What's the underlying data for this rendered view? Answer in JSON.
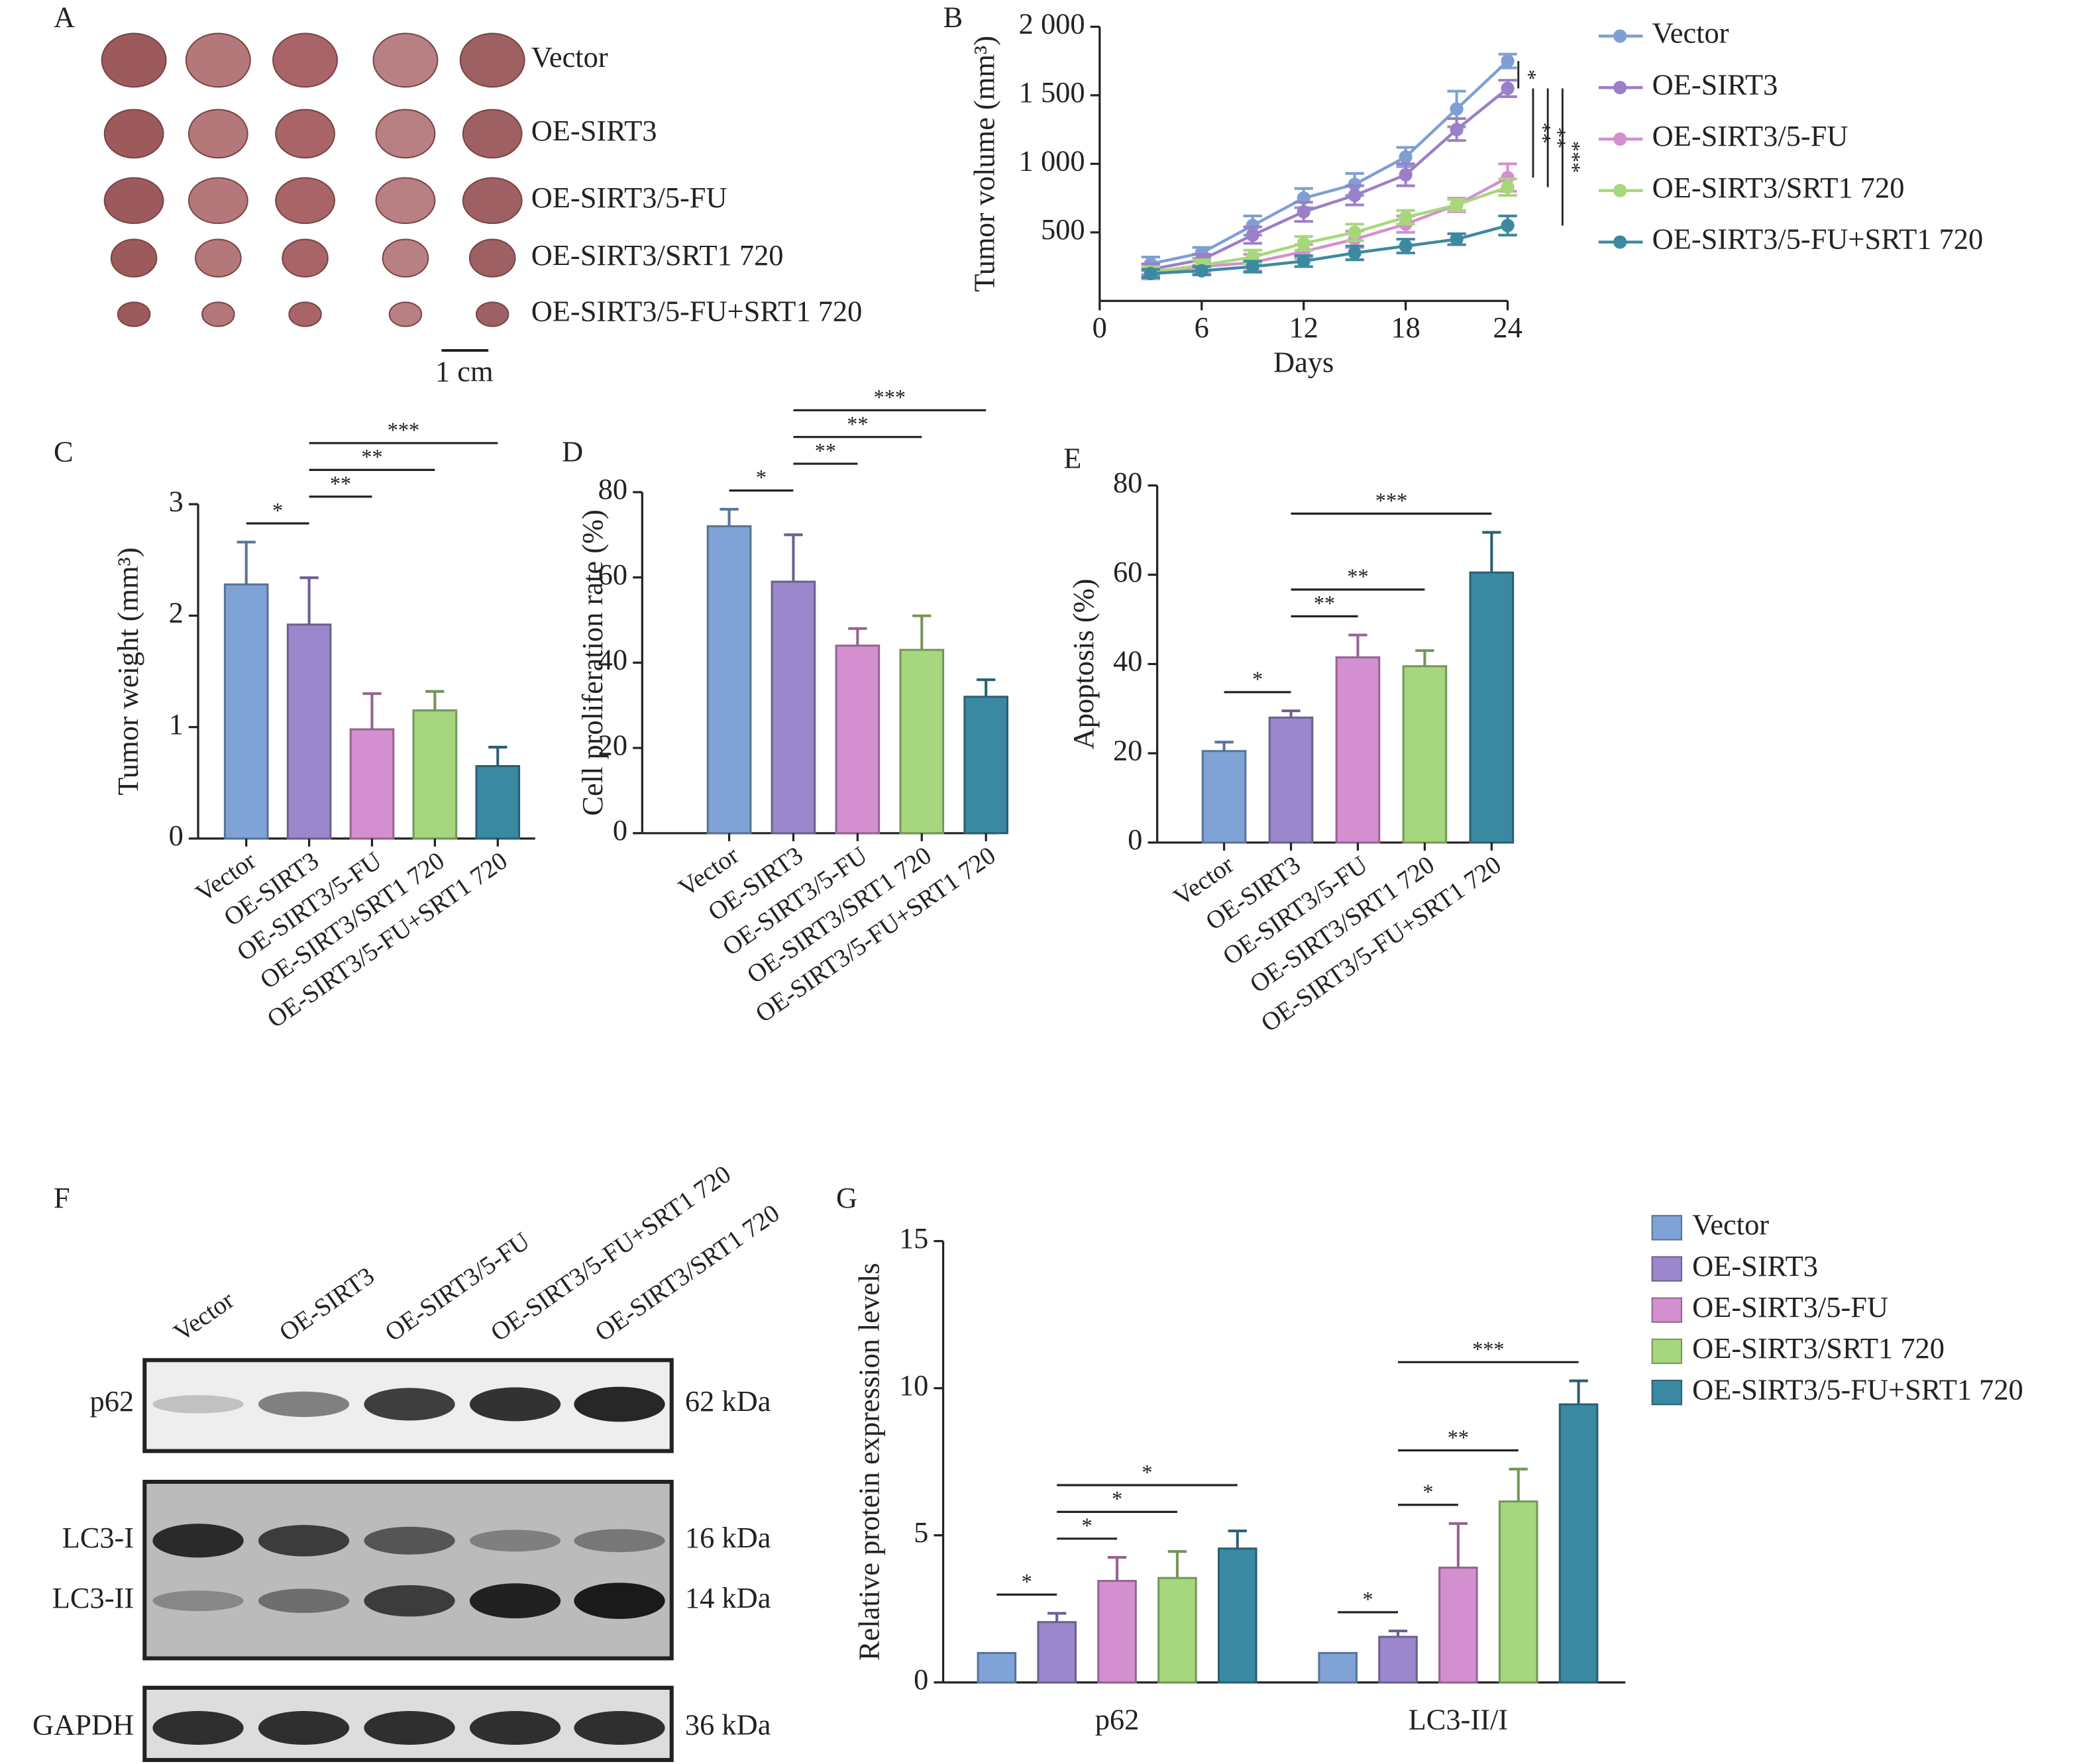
{
  "photo": {
    "label": "A",
    "rows": [
      "Vector",
      "OE-SIRT3",
      "OE-SIRT3/5-FU",
      "OE-SIRT3/SRT1 720",
      "OE-SIRT3/5-FU+SRT1 720"
    ],
    "scale_bar": "1 cm"
  },
  "blot": {
    "label": "F",
    "lanes": [
      "Vector",
      "OE-SIRT3",
      "OE-SIRT3/5-FU",
      "OE-SIRT3/5-FU+SRT1 720",
      "OE-SIRT3/SRT1 720"
    ],
    "bands": [
      {
        "name": "p62",
        "size": "62 kDa"
      },
      {
        "name": "LC3-I",
        "size": "16 kDa"
      },
      {
        "name": "LC3-II",
        "size": "14 kDa"
      },
      {
        "name": "GAPDH",
        "size": "36 kDa"
      }
    ]
  },
  "chart_data": [
    {
      "type": "line",
      "label": "B",
      "y_label": "Tumor volume (mm³)",
      "x_label": "Days",
      "x": [
        3,
        6,
        9,
        12,
        15,
        18,
        21,
        24
      ],
      "xlim": [
        0,
        24
      ],
      "xticks": [
        0,
        6,
        12,
        18,
        24
      ],
      "ylim": [
        0,
        2000
      ],
      "yticks": [
        500,
        {
          "value": 1000,
          "label": "1 000"
        },
        {
          "value": 1500,
          "label": "1 500"
        },
        {
          "value": 2000,
          "label": "2 000"
        }
      ],
      "legend": "right",
      "series": [
        {
          "name": "Vector",
          "color": "#7f9fd3",
          "values": [
            270,
            350,
            550,
            750,
            850,
            1050,
            1400,
            1750
          ],
          "errors": [
            50,
            40,
            70,
            70,
            80,
            70,
            130,
            50
          ]
        },
        {
          "name": "OE-SIRT3",
          "color": "#9b7fc9",
          "values": [
            230,
            300,
            480,
            650,
            770,
            920,
            1250,
            1550
          ],
          "errors": [
            40,
            40,
            60,
            70,
            70,
            80,
            80,
            60
          ]
        },
        {
          "name": "OE-SIRT3/5-FU",
          "color": "#d48fd0",
          "values": [
            200,
            250,
            280,
            360,
            450,
            560,
            700,
            900
          ],
          "errors": [
            40,
            40,
            60,
            50,
            60,
            60,
            50,
            100
          ]
        },
        {
          "name": "OE-SIRT3/SRT1 720",
          "color": "#a8d77a",
          "values": [
            210,
            260,
            320,
            420,
            500,
            610,
            700,
            830
          ],
          "errors": [
            40,
            40,
            50,
            50,
            60,
            50,
            40,
            60
          ]
        },
        {
          "name": "OE-SIRT3/5-FU+SRT1 720",
          "color": "#3d8aa0",
          "values": [
            200,
            220,
            250,
            290,
            350,
            400,
            450,
            550
          ],
          "errors": [
            30,
            30,
            40,
            40,
            50,
            50,
            40,
            70
          ]
        }
      ],
      "comparisons": [
        {
          "groups": [
            "Vector",
            "OE-SIRT3"
          ],
          "label": "*"
        },
        {
          "groups": [
            "OE-SIRT3",
            "OE-SIRT3/5-FU"
          ],
          "label": "**"
        },
        {
          "groups": [
            "OE-SIRT3",
            "OE-SIRT3/SRT1 720"
          ],
          "label": "**"
        },
        {
          "groups": [
            "OE-SIRT3",
            "OE-SIRT3/5-FU+SRT1 720"
          ],
          "label": "***"
        }
      ]
    },
    {
      "type": "bar",
      "label": "C",
      "y_label": "Tumor weight (mm³)",
      "categories": [
        "Vector",
        "OE-SIRT3",
        "OE-SIRT3/5-FU",
        "OE-SIRT3/SRT1 720",
        "OE-SIRT3/5-FU+SRT1 720"
      ],
      "values": [
        2.28,
        1.92,
        0.98,
        1.15,
        0.65
      ],
      "errors": [
        0.38,
        0.42,
        0.32,
        0.17,
        0.17
      ],
      "colors": [
        "#7fa3d6",
        "#9b87cc",
        "#d38fcf",
        "#a6d67e",
        "#3b88a3"
      ],
      "ylim": [
        0,
        3
      ],
      "yticks": [
        0,
        1,
        2,
        3
      ],
      "comparisons": [
        {
          "groups": [
            "Vector",
            "OE-SIRT3"
          ],
          "label": "*"
        },
        {
          "groups": [
            "OE-SIRT3",
            "OE-SIRT3/5-FU"
          ],
          "label": "**"
        },
        {
          "groups": [
            "OE-SIRT3",
            "OE-SIRT3/SRT1 720"
          ],
          "label": "**"
        },
        {
          "groups": [
            "OE-SIRT3",
            "OE-SIRT3/5-FU+SRT1 720"
          ],
          "label": "***"
        }
      ]
    },
    {
      "type": "bar",
      "label": "D",
      "y_label": "Cell proliferation rate (%)",
      "categories": [
        "Vector",
        "OE-SIRT3",
        "OE-SIRT3/5-FU",
        "OE-SIRT3/SRT1 720",
        "OE-SIRT3/5-FU+SRT1 720"
      ],
      "values": [
        72,
        59,
        44,
        43,
        32
      ],
      "errors": [
        4,
        11,
        4,
        8,
        4
      ],
      "colors": [
        "#7fa3d6",
        "#9b87cc",
        "#d38fcf",
        "#a6d67e",
        "#3b88a3"
      ],
      "ylim": [
        0,
        80
      ],
      "yticks": [
        0,
        20,
        40,
        60,
        80
      ],
      "comparisons": [
        {
          "groups": [
            "Vector",
            "OE-SIRT3"
          ],
          "label": "*"
        },
        {
          "groups": [
            "OE-SIRT3",
            "OE-SIRT3/5-FU"
          ],
          "label": "**"
        },
        {
          "groups": [
            "OE-SIRT3",
            "OE-SIRT3/SRT1 720"
          ],
          "label": "**"
        },
        {
          "groups": [
            "OE-SIRT3",
            "OE-SIRT3/5-FU+SRT1 720"
          ],
          "label": "***"
        }
      ]
    },
    {
      "type": "bar",
      "label": "E",
      "y_label": "Apoptosis (%)",
      "categories": [
        "Vector",
        "OE-SIRT3",
        "OE-SIRT3/5-FU",
        "OE-SIRT3/SRT1 720",
        "OE-SIRT3/5-FU+SRT1 720"
      ],
      "values": [
        20.5,
        28,
        41.5,
        39.5,
        60.5
      ],
      "errors": [
        2,
        1.5,
        5,
        3.5,
        9
      ],
      "colors": [
        "#7fa3d6",
        "#9b87cc",
        "#d38fcf",
        "#a6d67e",
        "#3b88a3"
      ],
      "ylim": [
        0,
        80
      ],
      "yticks": [
        0,
        20,
        40,
        60,
        80
      ],
      "comparisons": [
        {
          "groups": [
            "Vector",
            "OE-SIRT3"
          ],
          "label": "*"
        },
        {
          "groups": [
            "OE-SIRT3",
            "OE-SIRT3/5-FU"
          ],
          "label": "**"
        },
        {
          "groups": [
            "OE-SIRT3",
            "OE-SIRT3/SRT1 720"
          ],
          "label": "**"
        },
        {
          "groups": [
            "OE-SIRT3",
            "OE-SIRT3/5-FU+SRT1 720"
          ],
          "label": "***"
        }
      ]
    },
    {
      "type": "grouped_bar",
      "label": "G",
      "y_label": "Relative protein expression levels",
      "categories": [
        "p62",
        "LC3-II/I"
      ],
      "ylim": [
        0,
        15
      ],
      "yticks": [
        0,
        5,
        10,
        15
      ],
      "legend": "right",
      "series": [
        {
          "name": "Vector",
          "color": "#7fa3d6",
          "values": [
            1,
            1
          ],
          "errors": [
            0,
            0
          ]
        },
        {
          "name": "OE-SIRT3",
          "color": "#9b87cc",
          "values": [
            2.05,
            1.55
          ],
          "errors": [
            0.3,
            0.2
          ]
        },
        {
          "name": "OE-SIRT3/5-FU",
          "color": "#d38fcf",
          "values": [
            3.45,
            3.9
          ],
          "errors": [
            0.8,
            1.5
          ]
        },
        {
          "name": "OE-SIRT3/SRT1 720",
          "color": "#a6d67e",
          "values": [
            3.55,
            6.15
          ],
          "errors": [
            0.9,
            1.1
          ]
        },
        {
          "name": "OE-SIRT3/5-FU+SRT1 720",
          "color": "#3b88a3",
          "values": [
            4.55,
            9.45
          ],
          "errors": [
            0.6,
            0.8
          ]
        }
      ],
      "comparisons": [
        {
          "category": "p62",
          "groups": [
            "Vector",
            "OE-SIRT3"
          ],
          "label": "*"
        },
        {
          "category": "p62",
          "groups": [
            "OE-SIRT3",
            "OE-SIRT3/5-FU"
          ],
          "label": "*"
        },
        {
          "category": "p62",
          "groups": [
            "OE-SIRT3",
            "OE-SIRT3/SRT1 720"
          ],
          "label": "*"
        },
        {
          "category": "p62",
          "groups": [
            "OE-SIRT3",
            "OE-SIRT3/5-FU+SRT1 720"
          ],
          "label": "*"
        },
        {
          "category": "LC3-II/I",
          "groups": [
            "Vector",
            "OE-SIRT3"
          ],
          "label": "*"
        },
        {
          "category": "LC3-II/I",
          "groups": [
            "OE-SIRT3",
            "OE-SIRT3/5-FU"
          ],
          "label": "*"
        },
        {
          "category": "LC3-II/I",
          "groups": [
            "OE-SIRT3",
            "OE-SIRT3/SRT1 720"
          ],
          "label": "**"
        },
        {
          "category": "LC3-II/I",
          "groups": [
            "OE-SIRT3",
            "OE-SIRT3/5-FU+SRT1 720"
          ],
          "label": "***"
        }
      ]
    }
  ]
}
